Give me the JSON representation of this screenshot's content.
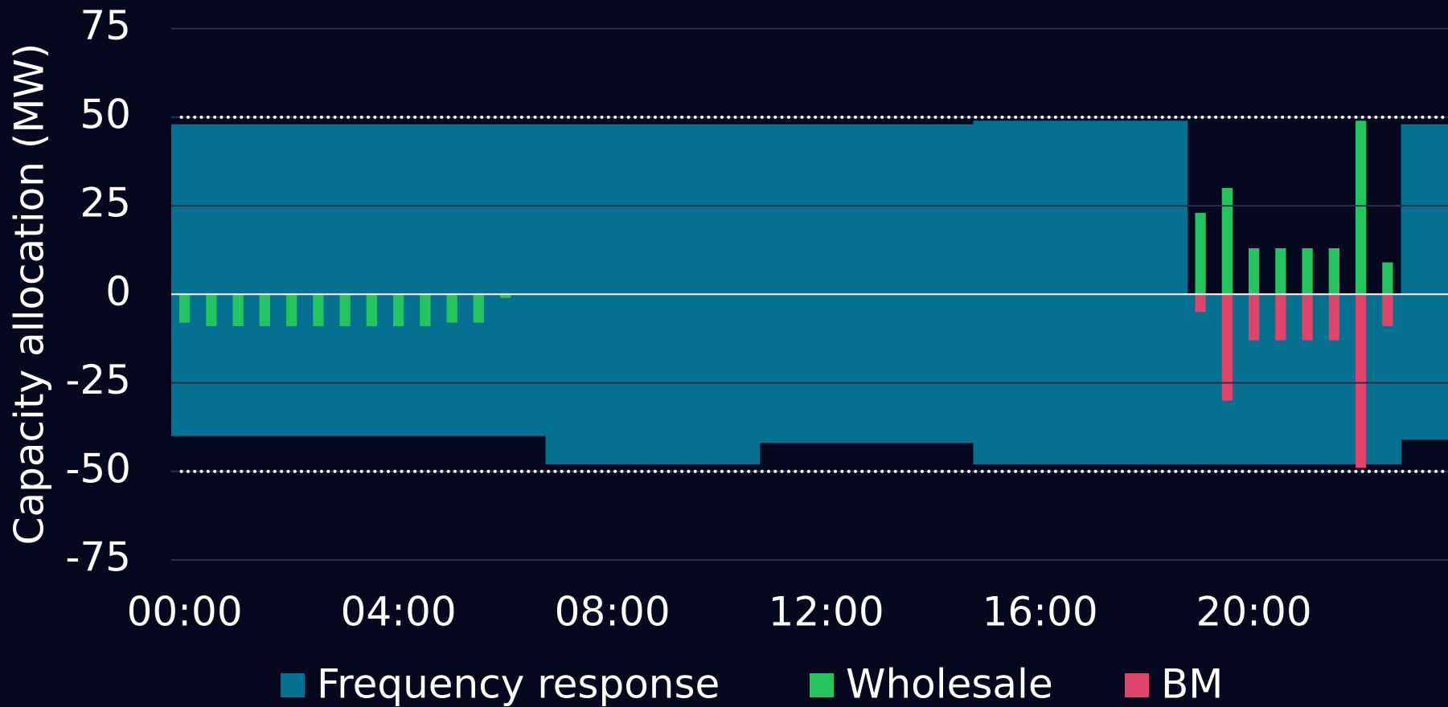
{
  "chart_data": {
    "type": "bar",
    "y_label": "Capacity allocation (MW)",
    "xlim": [
      -0.25,
      23.63
    ],
    "xticks": [
      {
        "value": 0,
        "label": "00:00"
      },
      {
        "value": 4,
        "label": "04:00"
      },
      {
        "value": 8,
        "label": "08:00"
      },
      {
        "value": 12,
        "label": "12:00"
      },
      {
        "value": 16,
        "label": "16:00"
      },
      {
        "value": 20,
        "label": "20:00"
      }
    ],
    "ylim": [
      -75,
      75
    ],
    "yticks": [
      75,
      50,
      25,
      0,
      -25,
      -50,
      -75
    ],
    "grid": true,
    "reference_lines": [
      50,
      -50
    ],
    "series": [
      {
        "name": "Frequency response",
        "color": "#05708f",
        "edges": [
          -0.25,
          6.75,
          10.75,
          14.75,
          18.75,
          22.75,
          23.75
        ],
        "upper": [
          48,
          48,
          48,
          49,
          0,
          48
        ],
        "lower": [
          -40,
          -48,
          -42,
          -48,
          -48,
          -41
        ]
      },
      {
        "name": "Wholesale",
        "color": "#24c55e",
        "x": [
          0,
          0.5,
          1,
          1.5,
          2,
          2.5,
          3,
          3.5,
          4,
          4.5,
          5,
          5.5,
          6,
          19,
          19.5,
          20,
          20.5,
          21,
          21.5,
          22,
          22.5
        ],
        "values": [
          -8,
          -9,
          -9,
          -9,
          -9,
          -9,
          -9,
          -9,
          -9,
          -9,
          -8,
          -8,
          -1,
          23,
          30,
          13,
          13,
          13,
          13,
          49,
          9
        ]
      },
      {
        "name": "BM",
        "color": "#e0446a",
        "x": [
          19,
          19.5,
          20,
          20.5,
          21,
          21.5,
          22,
          22.5
        ],
        "values": [
          -5,
          -30,
          -13,
          -13,
          -13,
          -13,
          -49,
          -9
        ]
      }
    ]
  }
}
